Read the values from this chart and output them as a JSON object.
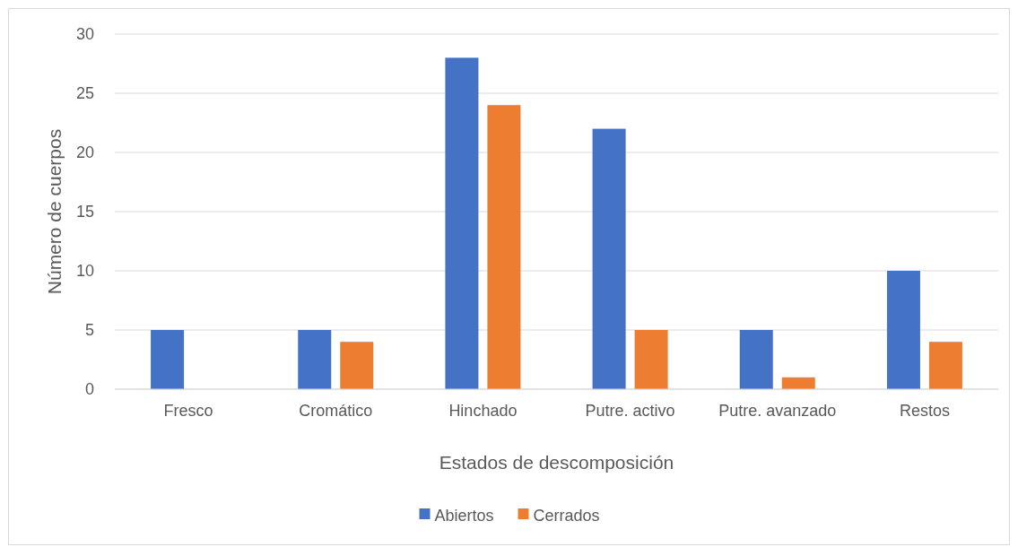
{
  "chart_data": {
    "type": "bar",
    "xlabel": "Estados de descomposición",
    "ylabel": "Número de cuerpos",
    "categories": [
      "Fresco",
      "Cromático",
      "Hinchado",
      "Putre. activo",
      "Putre. avanzado",
      "Restos"
    ],
    "series": [
      {
        "name": "Abiertos",
        "color": "#4472c4",
        "values": [
          5,
          5,
          28,
          22,
          5,
          10
        ]
      },
      {
        "name": "Cerrados",
        "color": "#ed7d31",
        "values": [
          0,
          4,
          24,
          5,
          1,
          4
        ]
      }
    ],
    "ylim": [
      0,
      30
    ],
    "yticks": [
      0,
      5,
      10,
      15,
      20,
      25,
      30
    ],
    "grid": "y",
    "legend": "bottom"
  }
}
